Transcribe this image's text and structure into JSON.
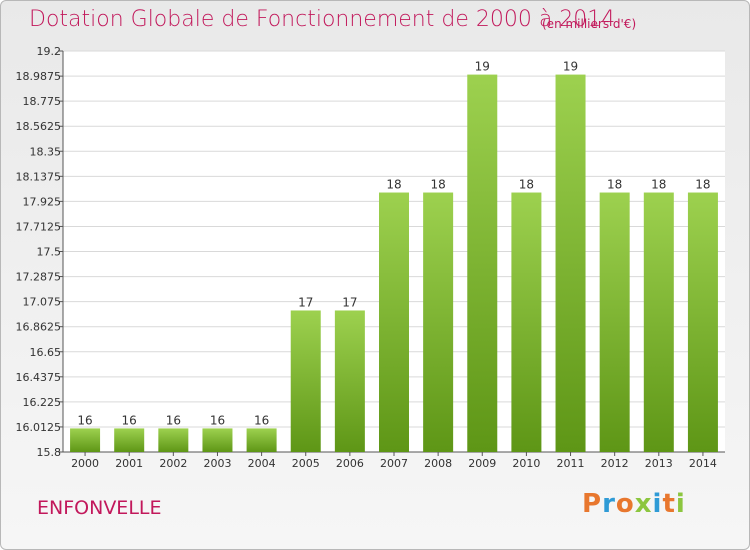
{
  "header": {
    "title": "Dotation Globale de Fonctionnement de 2000 à 2014",
    "unit": "(en milliers d'€)"
  },
  "footer": {
    "commune": "ENFONVELLE",
    "logo": "Proxiti"
  },
  "colors": {
    "title": "#c2185b",
    "bar_top": "#9dd14f",
    "bar_bottom": "#5e9616",
    "logo_letters": [
      "#e8772e",
      "#2f9bd6",
      "#e8772e",
      "#8cc63f",
      "#2f9bd6",
      "#e8772e",
      "#8cc63f"
    ]
  },
  "chart_data": {
    "type": "bar",
    "title": "Dotation Globale de Fonctionnement de 2000 à 2014",
    "ylabel": "",
    "xlabel": "",
    "ylim": [
      15.8,
      19.2
    ],
    "yticks": [
      "19.2",
      "18.9875",
      "18.775",
      "18.5625",
      "18.35",
      "18.1375",
      "17.925",
      "17.7125",
      "17.5",
      "17.2875",
      "17.075",
      "16.8625",
      "16.65",
      "16.4375",
      "16.225",
      "16.0125",
      "15.8"
    ],
    "grid": true,
    "categories": [
      "2000",
      "2001",
      "2002",
      "2003",
      "2004",
      "2005",
      "2006",
      "2007",
      "2008",
      "2009",
      "2010",
      "2011",
      "2012",
      "2013",
      "2014"
    ],
    "values": [
      16,
      16,
      16,
      16,
      16,
      17,
      17,
      18,
      18,
      19,
      18,
      19,
      18,
      18,
      18
    ]
  }
}
